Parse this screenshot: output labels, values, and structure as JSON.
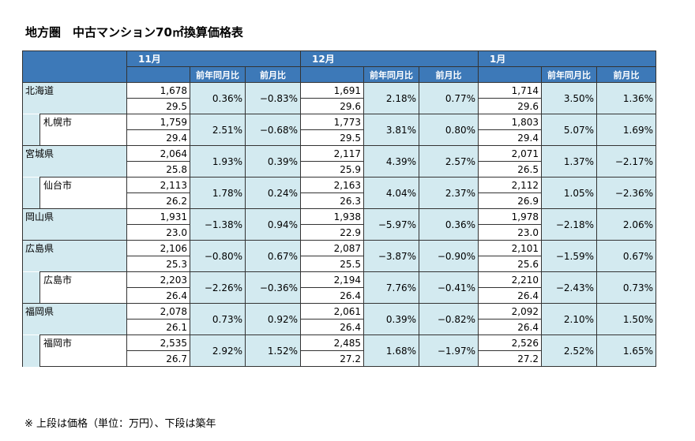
{
  "title": "地方圏　中古マンション70㎡換算価格表",
  "note": "※ 上段は価格（単位：万円）、下段は築年",
  "months": [
    "11月",
    "12月",
    "1月"
  ],
  "subheaders": [
    "前年同月比",
    "前月比"
  ],
  "rows": [
    {
      "name": "北海道",
      "is_city": false,
      "data": [
        {
          "price": "1,678",
          "age": "29.5",
          "yoy": "0.36%",
          "mom": "−0.83%"
        },
        {
          "price": "1,691",
          "age": "29.6",
          "yoy": "2.18%",
          "mom": "0.77%"
        },
        {
          "price": "1,714",
          "age": "29.6",
          "yoy": "3.50%",
          "mom": "1.36%"
        }
      ]
    },
    {
      "name": "札幌市",
      "is_city": true,
      "data": [
        {
          "price": "1,759",
          "age": "29.4",
          "yoy": "2.51%",
          "mom": "−0.68%"
        },
        {
          "price": "1,773",
          "age": "29.5",
          "yoy": "3.81%",
          "mom": "0.80%"
        },
        {
          "price": "1,803",
          "age": "29.4",
          "yoy": "5.07%",
          "mom": "1.69%"
        }
      ]
    },
    {
      "name": "宮城県",
      "is_city": false,
      "data": [
        {
          "price": "2,064",
          "age": "25.8",
          "yoy": "1.93%",
          "mom": "0.39%"
        },
        {
          "price": "2,117",
          "age": "25.9",
          "yoy": "4.39%",
          "mom": "2.57%"
        },
        {
          "price": "2,071",
          "age": "26.5",
          "yoy": "1.37%",
          "mom": "−2.17%"
        }
      ]
    },
    {
      "name": "仙台市",
      "is_city": true,
      "data": [
        {
          "price": "2,113",
          "age": "26.2",
          "yoy": "1.78%",
          "mom": "0.24%"
        },
        {
          "price": "2,163",
          "age": "26.3",
          "yoy": "4.04%",
          "mom": "2.37%"
        },
        {
          "price": "2,112",
          "age": "26.9",
          "yoy": "1.05%",
          "mom": "−2.36%"
        }
      ]
    },
    {
      "name": "岡山県",
      "is_city": false,
      "data": [
        {
          "price": "1,931",
          "age": "23.0",
          "yoy": "−1.38%",
          "mom": "0.94%"
        },
        {
          "price": "1,938",
          "age": "22.9",
          "yoy": "−5.97%",
          "mom": "0.36%"
        },
        {
          "price": "1,978",
          "age": "23.0",
          "yoy": "−2.18%",
          "mom": "2.06%"
        }
      ]
    },
    {
      "name": "広島県",
      "is_city": false,
      "data": [
        {
          "price": "2,106",
          "age": "25.3",
          "yoy": "−0.80%",
          "mom": "0.67%"
        },
        {
          "price": "2,087",
          "age": "25.5",
          "yoy": "−3.87%",
          "mom": "−0.90%"
        },
        {
          "price": "2,101",
          "age": "25.6",
          "yoy": "−1.59%",
          "mom": "0.67%"
        }
      ]
    },
    {
      "name": "広島市",
      "is_city": true,
      "data": [
        {
          "price": "2,203",
          "age": "26.4",
          "yoy": "−2.26%",
          "mom": "−0.36%"
        },
        {
          "price": "2,194",
          "age": "26.4",
          "yoy": "7.76%",
          "mom": "−0.41%"
        },
        {
          "price": "2,210",
          "age": "26.4",
          "yoy": "−2.43%",
          "mom": "0.73%"
        }
      ]
    },
    {
      "name": "福岡県",
      "is_city": false,
      "data": [
        {
          "price": "2,078",
          "age": "26.1",
          "yoy": "0.73%",
          "mom": "0.92%"
        },
        {
          "price": "2,061",
          "age": "26.4",
          "yoy": "0.39%",
          "mom": "−0.82%"
        },
        {
          "price": "2,092",
          "age": "26.4",
          "yoy": "2.10%",
          "mom": "1.50%"
        }
      ]
    },
    {
      "name": "福岡市",
      "is_city": true,
      "data": [
        {
          "price": "2,535",
          "age": "26.7",
          "yoy": "2.92%",
          "mom": "1.52%"
        },
        {
          "price": "2,485",
          "age": "27.2",
          "yoy": "1.68%",
          "mom": "−1.97%"
        },
        {
          "price": "2,526",
          "age": "27.2",
          "yoy": "2.52%",
          "mom": "1.65%"
        }
      ]
    }
  ]
}
